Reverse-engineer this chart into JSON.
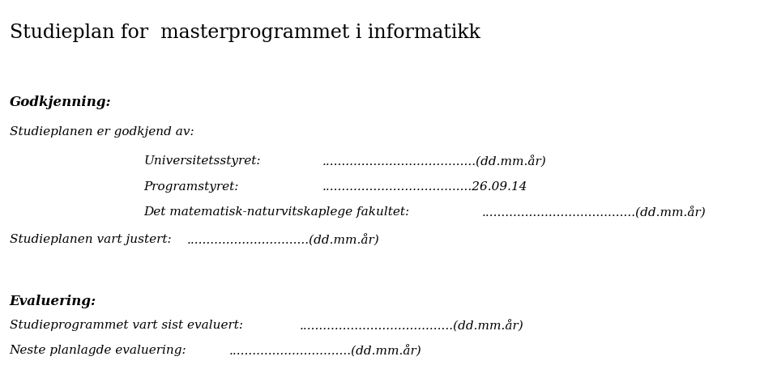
{
  "title": "Studieplan for  masterprogrammet i informatikk",
  "section1_header": "Godkjenning:",
  "section1_sub": "Studieplanen er godkjend av:",
  "row1_label": "Universitetsstyret:",
  "row1_value": ".......................................(dd.mm.år)",
  "row2_label": "Programstyret:",
  "row2_value": "......................................26.09.14",
  "row3_label": "Det matematisk-naturvitskaplege fakultet:",
  "row3_value": ".......................................(dd.mm.år)",
  "justert_label": "Studieplanen vart justert:",
  "justert_value": "...............................(dd.mm.år)",
  "section2_header": "Evaluering:",
  "eval1_label": "Studieprogrammet vart sist evaluert:",
  "eval1_value": ".......................................(dd.mm.år)",
  "eval2_label": "Neste planlagde evaluering:",
  "eval2_value": "...............................(dd.mm.år)",
  "bg_color": "#ffffff",
  "text_color": "#000000",
  "title_fontsize": 17,
  "header_fontsize": 12,
  "body_fontsize": 11
}
